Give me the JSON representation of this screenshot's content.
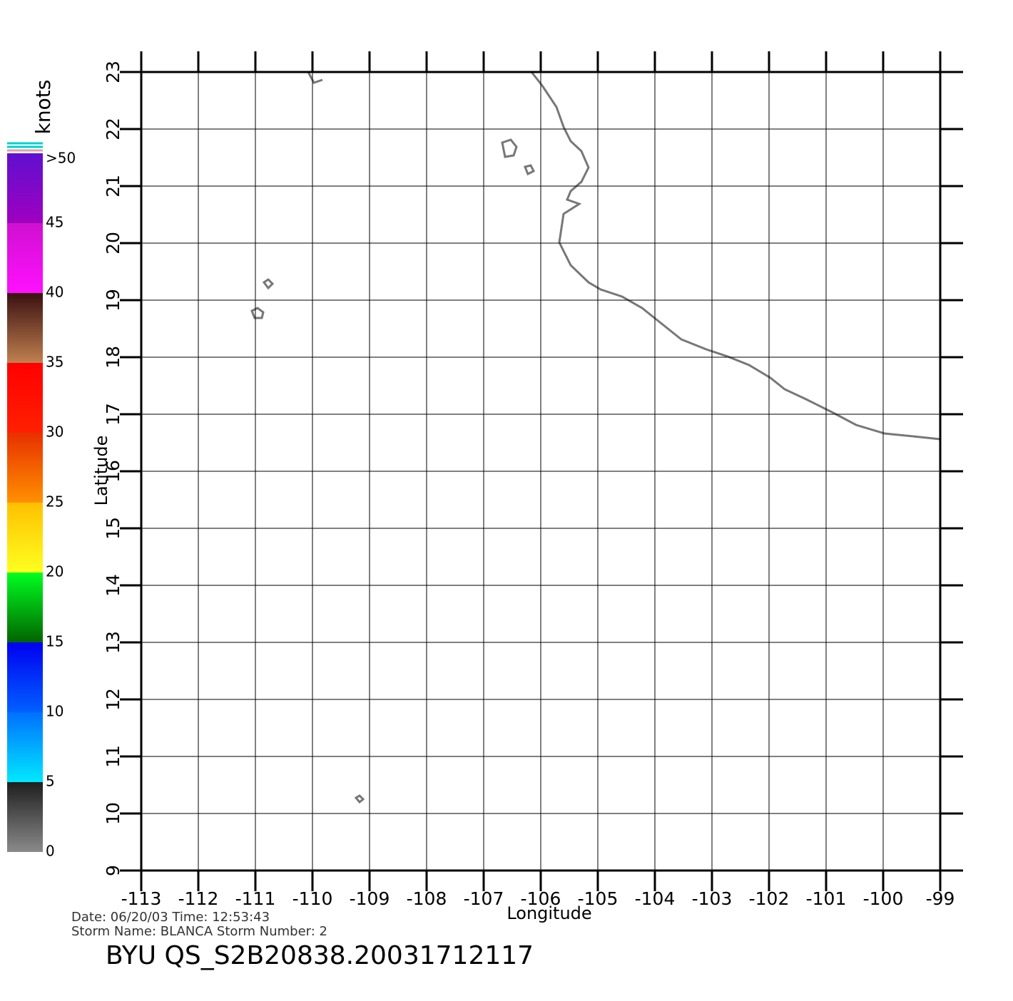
{
  "map": {
    "xlabel": "Longitude",
    "ylabel": "Latitude",
    "xlim": [
      -113,
      -99
    ],
    "ylim": [
      9,
      23
    ],
    "xticks": [
      -113,
      -112,
      -111,
      -110,
      -109,
      -108,
      -107,
      -106,
      -105,
      -104,
      -103,
      -102,
      -101,
      -100,
      -99
    ],
    "yticks": [
      9,
      10,
      11,
      12,
      13,
      14,
      15,
      16,
      17,
      18,
      19,
      20,
      21,
      22,
      23
    ],
    "grid": true,
    "colorbar": {
      "title": "knots",
      "lim": [
        0,
        50
      ],
      "ticks": [
        0,
        5,
        10,
        15,
        20,
        25,
        30,
        35,
        40,
        45,
        {
          "value": 50,
          "label": ">50"
        }
      ],
      "segments": [
        {
          "from": 0,
          "to": 5,
          "colors": [
            "#8a8a8a",
            "#1e1e1e"
          ]
        },
        {
          "from": 5,
          "to": 10,
          "colors": [
            "#00e8ff",
            "#0070ff"
          ]
        },
        {
          "from": 10,
          "to": 15,
          "colors": [
            "#0060ff",
            "#0000f0"
          ]
        },
        {
          "from": 15,
          "to": 20,
          "colors": [
            "#006400",
            "#00ff20"
          ]
        },
        {
          "from": 20,
          "to": 25,
          "colors": [
            "#ffff20",
            "#ffc000"
          ]
        },
        {
          "from": 25,
          "to": 30,
          "colors": [
            "#ff9000",
            "#e83000"
          ]
        },
        {
          "from": 30,
          "to": 35,
          "colors": [
            "#ff2000",
            "#ff0000"
          ]
        },
        {
          "from": 35,
          "to": 40,
          "colors": [
            "#c08050",
            "#3a1010"
          ]
        },
        {
          "from": 40,
          "to": 45,
          "colors": [
            "#ff10ff",
            "#d010d0"
          ]
        },
        {
          "from": 45,
          "to": 50,
          "colors": [
            "#a000c0",
            "#6010d0"
          ]
        }
      ]
    }
  },
  "footer": {
    "date_line": "Date:  06/20/03    Time:  12:53:43",
    "storm_line": "Storm  Name:  BLANCA    Storm  Number:  2",
    "product": "BYU  QS_S2B20838.20031712117"
  }
}
